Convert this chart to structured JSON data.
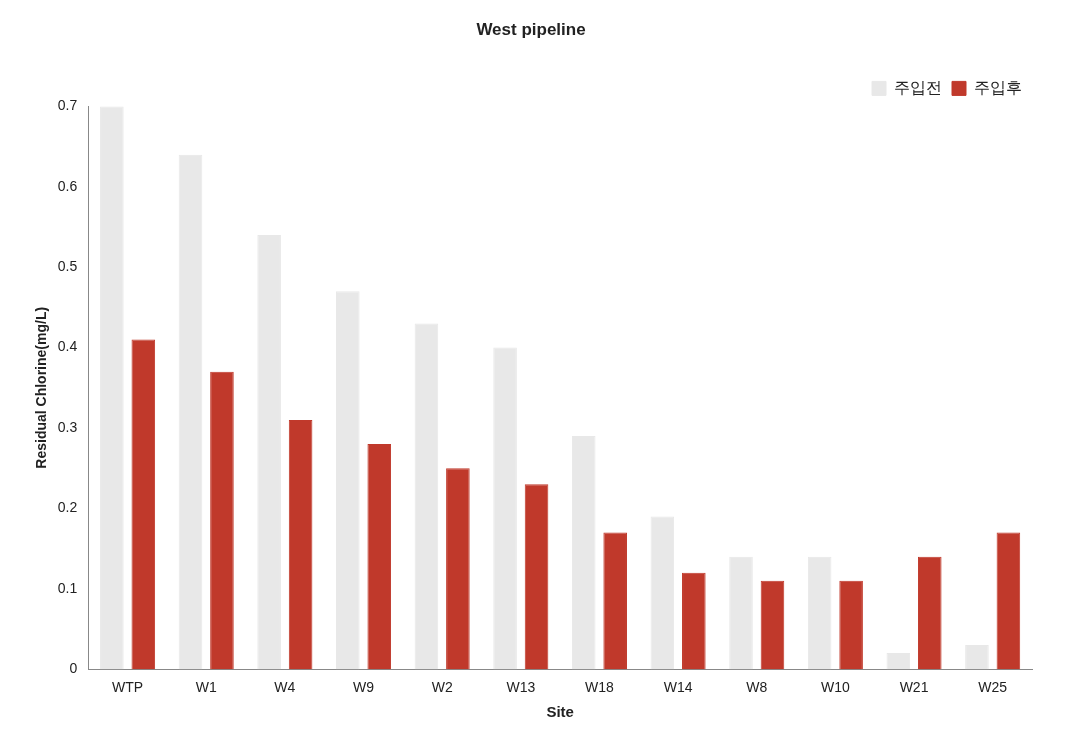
{
  "chart_data": {
    "type": "bar",
    "title": "West pipeline",
    "xlabel": "Site",
    "ylabel": "Residual Chlorine(mg/L)",
    "categories": [
      "WTP",
      "W1",
      "W4",
      "W9",
      "W2",
      "W13",
      "W18",
      "W14",
      "W8",
      "W10",
      "W21",
      "W25"
    ],
    "series": [
      {
        "name": "주입전",
        "color": "#e8e8e8",
        "values": [
          0.7,
          0.64,
          0.54,
          0.47,
          0.43,
          0.4,
          0.29,
          0.19,
          0.14,
          0.14,
          0.02,
          0.03
        ]
      },
      {
        "name": "주입후",
        "color": "#c0392b",
        "values": [
          0.41,
          0.37,
          0.31,
          0.28,
          0.25,
          0.23,
          0.17,
          0.12,
          0.11,
          0.11,
          0.14,
          0.17
        ]
      }
    ],
    "ylim": [
      0,
      0.7
    ],
    "yticks": [
      0,
      0.1,
      0.2,
      0.3,
      0.4,
      0.5,
      0.6,
      0.7
    ],
    "grid": false,
    "legend": "top right"
  }
}
